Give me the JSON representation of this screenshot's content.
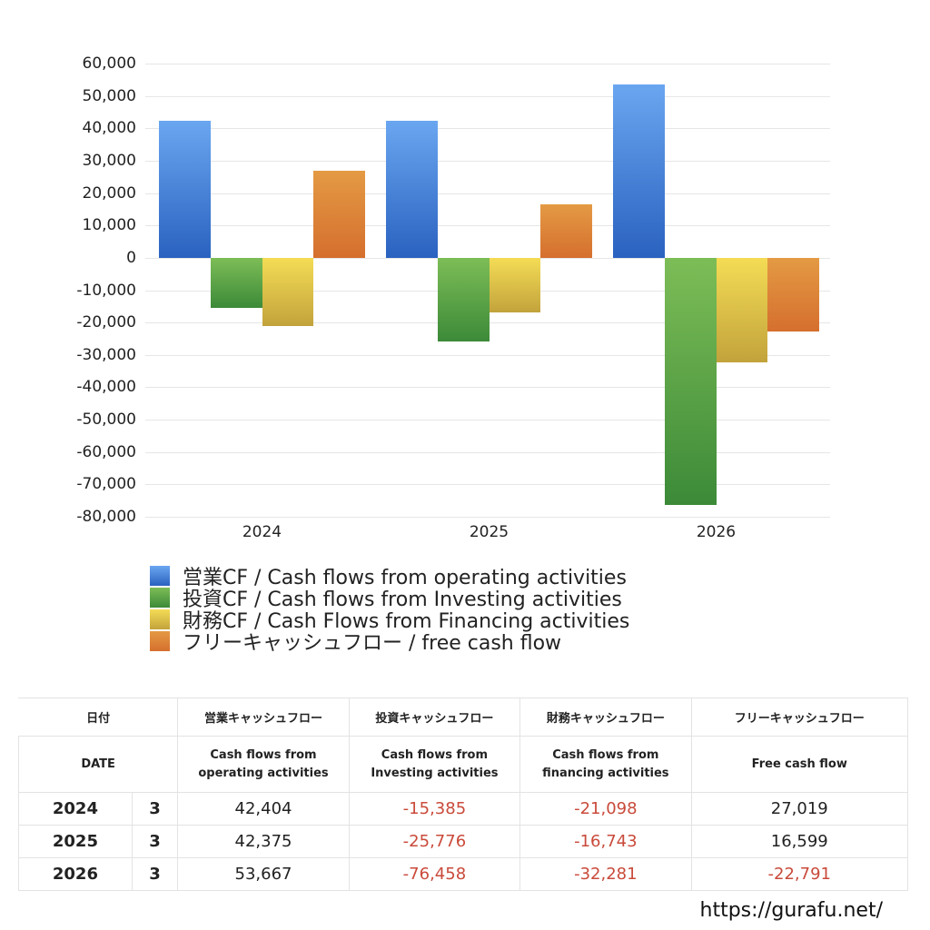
{
  "chart_data": {
    "type": "bar",
    "title": "",
    "xlabel": "",
    "ylabel": "",
    "categories": [
      "2024",
      "2025",
      "2026"
    ],
    "ylim": [
      -80000,
      60000
    ],
    "yticks": [
      "60,000",
      "50,000",
      "40,000",
      "30,000",
      "20,000",
      "10,000",
      "0",
      "-10,000",
      "-20,000",
      "-30,000",
      "-40,000",
      "-50,000",
      "-60,000",
      "-70,000",
      "-80,000"
    ],
    "grid": true,
    "legend_position": "bottom",
    "series": [
      {
        "name": "営業CF / Cash flows from operating activities",
        "color": "#3f7fdc",
        "values": [
          42404,
          42375,
          53667
        ]
      },
      {
        "name": "投資CF / Cash flows from Investing activities",
        "color": "#56a044",
        "values": [
          -15385,
          -25776,
          -76458
        ]
      },
      {
        "name": "財務CF / Cash Flows from Financing activities",
        "color": "#e0c547",
        "values": [
          -21098,
          -16743,
          -32281
        ]
      },
      {
        "name": "フリーキャッシュフロー / free cash flow",
        "color": "#de8232",
        "values": [
          27019,
          16599,
          -22791
        ]
      }
    ]
  },
  "legend": [
    {
      "label": "営業CF / Cash flows from operating activities"
    },
    {
      "label": "投資CF / Cash flows from Investing activities"
    },
    {
      "label": "財務CF / Cash Flows from Financing activities"
    },
    {
      "label": "フリーキャッシュフロー / free cash flow"
    }
  ],
  "table": {
    "header_jp": [
      "日付",
      "営業キャッシュフロー",
      "投資キャッシュフロー",
      "財務キャッシュフロー",
      "フリーキャッシュフロー"
    ],
    "header_en": [
      "DATE",
      "Cash flows from operating activities",
      "Cash flows from Investing activities",
      "Cash flows from financing activities",
      "Free cash flow"
    ],
    "rows": [
      {
        "year": "2024",
        "month": "3",
        "operating": "42,404",
        "investing": "-15,385",
        "financing": "-21,098",
        "free": "27,019"
      },
      {
        "year": "2025",
        "month": "3",
        "operating": "42,375",
        "investing": "-25,776",
        "financing": "-16,743",
        "free": "16,599"
      },
      {
        "year": "2026",
        "month": "3",
        "operating": "53,667",
        "investing": "-76,458",
        "financing": "-32,281",
        "free": "-22,791"
      }
    ]
  },
  "footer": {
    "url": "https://gurafu.net/"
  }
}
